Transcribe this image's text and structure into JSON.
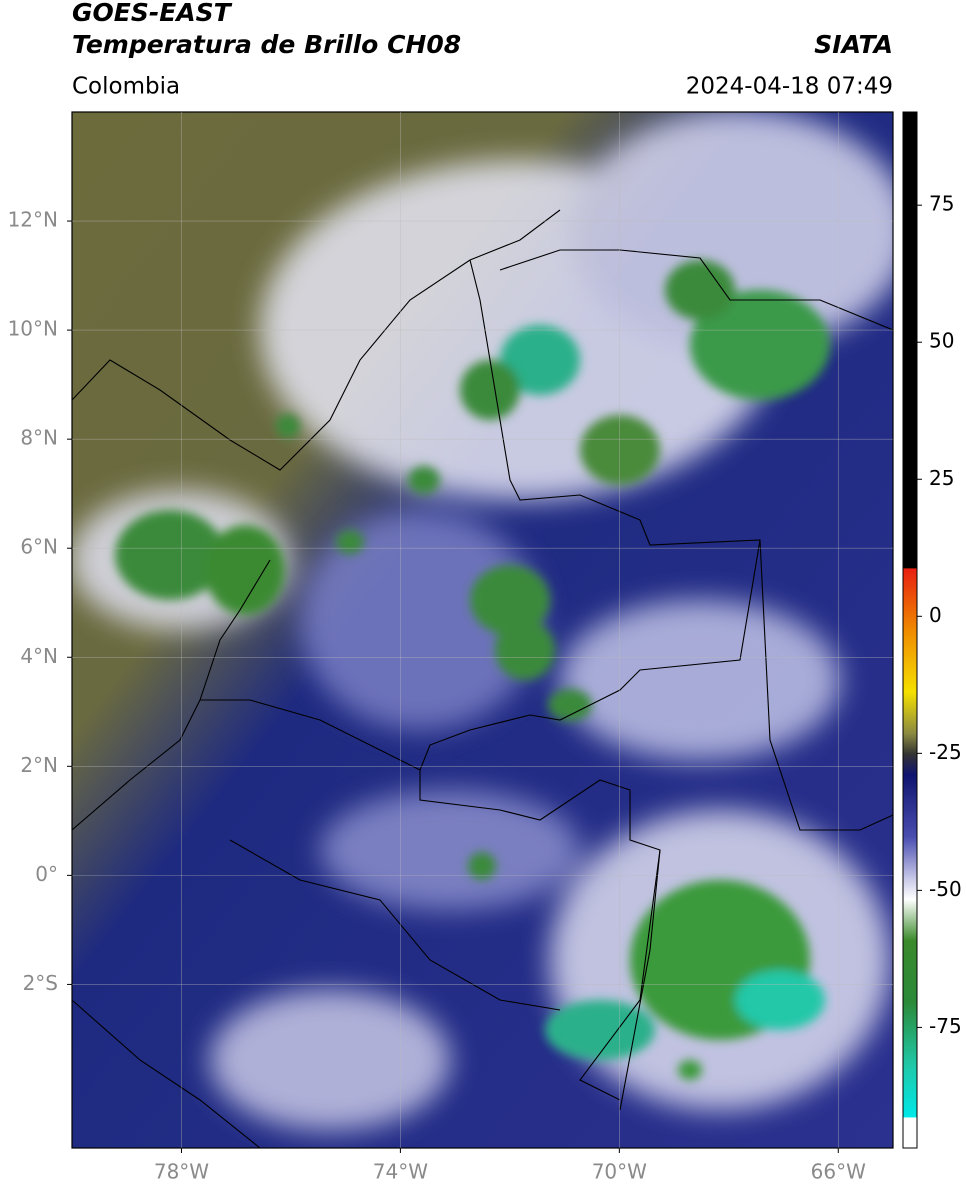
{
  "header": {
    "title": "GOES-EAST",
    "subtitle": "Temperatura de Brillo CH08",
    "source": "SIATA",
    "region": "Colombia",
    "datetime": "2024-04-18 07:49"
  },
  "map": {
    "xlim": [
      -80,
      -65
    ],
    "ylim": [
      -5,
      14
    ],
    "xticks": [
      {
        "value": -78,
        "label": "78°W"
      },
      {
        "value": -74,
        "label": "74°W"
      },
      {
        "value": -70,
        "label": "70°W"
      },
      {
        "value": -66,
        "label": "66°W"
      }
    ],
    "yticks": [
      {
        "value": 12,
        "label": "12°N"
      },
      {
        "value": 10,
        "label": "10°N"
      },
      {
        "value": 8,
        "label": "8°N"
      },
      {
        "value": 6,
        "label": "6°N"
      },
      {
        "value": 4,
        "label": "4°N"
      },
      {
        "value": 2,
        "label": "2°N"
      },
      {
        "value": 0,
        "label": "0°"
      },
      {
        "value": -2,
        "label": "2°S"
      }
    ],
    "grid": true
  },
  "colorbar": {
    "ylim": [
      -97,
      92
    ],
    "yticks": [
      75,
      50,
      25,
      0,
      -25,
      -50,
      -75
    ]
  }
}
